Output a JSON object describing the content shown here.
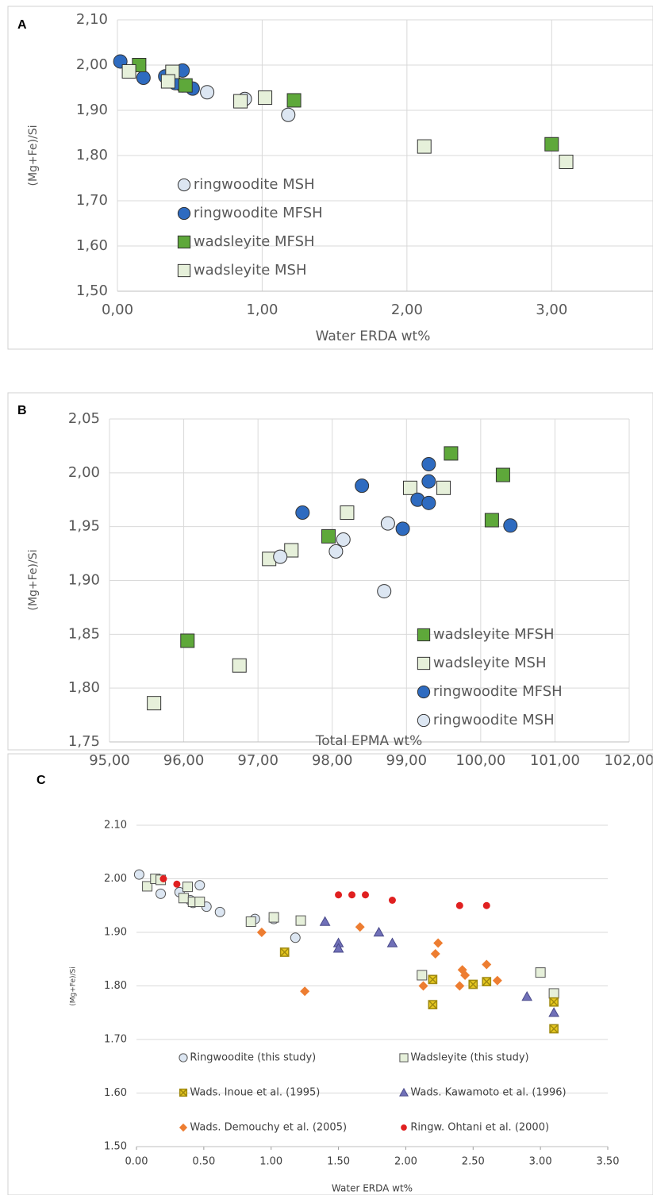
{
  "chart_data": [
    {
      "type": "scatter",
      "label": "A",
      "xlabel": "Water ERDA wt%",
      "ylabel": "(Mg+Fe)/Si",
      "xlim": [
        0,
        3.7
      ],
      "ylim": [
        1.5,
        2.1
      ],
      "grid": "both",
      "legend": "center left",
      "xticks": [
        {
          "value": 0,
          "label": "0,00"
        },
        {
          "value": 1,
          "label": "1,00"
        },
        {
          "value": 2,
          "label": "2,00"
        },
        {
          "value": 3,
          "label": "3,00"
        }
      ],
      "yticks": [
        {
          "value": 1.5,
          "label": "1,50"
        },
        {
          "value": 1.6,
          "label": "1,60"
        },
        {
          "value": 1.7,
          "label": "1,70"
        },
        {
          "value": 1.8,
          "label": "1,80"
        },
        {
          "value": 1.9,
          "label": "1,90"
        },
        {
          "value": 2.0,
          "label": "2,00"
        },
        {
          "value": 2.1,
          "label": "2,10"
        }
      ],
      "series": [
        {
          "name": "ringwoodite MSH",
          "marker": "circle",
          "color": "#dce6f2",
          "x": [
            0.62,
            0.88,
            1.18,
            0.45
          ],
          "values": [
            1.94,
            1.925,
            1.89,
            1.955
          ]
        },
        {
          "name": "ringwoodite MFSH",
          "marker": "circle",
          "color": "#2e6bc0",
          "x": [
            0.02,
            0.18,
            0.33,
            0.45,
            0.4,
            0.52
          ],
          "values": [
            2.008,
            1.972,
            1.975,
            1.988,
            1.96,
            1.948
          ]
        },
        {
          "name": "wadsleyite MFSH",
          "marker": "square",
          "color": "#5ea83a",
          "x": [
            0.15,
            0.47,
            1.22,
            3.0
          ],
          "values": [
            2.0,
            1.955,
            1.922,
            1.825
          ]
        },
        {
          "name": "wadsleyite MSH",
          "marker": "square",
          "color": "#e6f0da",
          "x": [
            0.08,
            0.38,
            0.35,
            0.85,
            1.02,
            2.12,
            3.1
          ],
          "values": [
            1.986,
            1.985,
            1.964,
            1.92,
            1.928,
            1.82,
            1.786
          ]
        }
      ]
    },
    {
      "type": "scatter",
      "label": "B",
      "xlabel": "Total EPMA wt%",
      "ylabel": "(Mg+Fe)/Si",
      "xlim": [
        95,
        102
      ],
      "ylim": [
        1.75,
        2.05
      ],
      "grid": "both",
      "legend": "lower right",
      "xticks": [
        {
          "value": 95,
          "label": "95,00"
        },
        {
          "value": 96,
          "label": "96,00"
        },
        {
          "value": 97,
          "label": "97,00"
        },
        {
          "value": 98,
          "label": "98,00"
        },
        {
          "value": 99,
          "label": "99,00"
        },
        {
          "value": 100,
          "label": "100,00"
        },
        {
          "value": 101,
          "label": "101,00"
        },
        {
          "value": 102,
          "label": "102,00"
        }
      ],
      "yticks": [
        {
          "value": 1.75,
          "label": "1,75"
        },
        {
          "value": 1.8,
          "label": "1,80"
        },
        {
          "value": 1.85,
          "label": "1,85"
        },
        {
          "value": 1.9,
          "label": "1,90"
        },
        {
          "value": 1.95,
          "label": "1,95"
        },
        {
          "value": 2.0,
          "label": "2,00"
        },
        {
          "value": 2.05,
          "label": "2,05"
        }
      ],
      "series": [
        {
          "name": "wadsleyite MFSH",
          "marker": "square",
          "color": "#5ea83a",
          "x": [
            99.6,
            100.3,
            100.15,
            97.95,
            96.05
          ],
          "values": [
            2.018,
            1.998,
            1.956,
            1.941,
            1.844
          ]
        },
        {
          "name": "wadsleyite MSH",
          "marker": "square",
          "color": "#e6f0da",
          "x": [
            99.05,
            99.5,
            98.2,
            97.45,
            97.15,
            96.75,
            95.6
          ],
          "values": [
            1.986,
            1.986,
            1.963,
            1.928,
            1.92,
            1.821,
            1.786
          ]
        },
        {
          "name": "ringwoodite MFSH",
          "marker": "circle",
          "color": "#2e6bc0",
          "x": [
            99.3,
            99.3,
            98.4,
            99.15,
            99.3,
            97.6,
            98.95,
            100.4
          ],
          "values": [
            2.008,
            1.992,
            1.988,
            1.975,
            1.972,
            1.963,
            1.948,
            1.951
          ]
        },
        {
          "name": "ringwoodite MSH",
          "marker": "circle",
          "color": "#dce6f2",
          "x": [
            98.75,
            98.15,
            98.05,
            97.3,
            98.7
          ],
          "values": [
            1.953,
            1.938,
            1.927,
            1.922,
            1.89
          ]
        }
      ]
    },
    {
      "type": "scatter",
      "label": "C",
      "xlabel": "Water ERDA wt%",
      "ylabel": "(Mg+Fe)/Si",
      "xlim": [
        0,
        3.5
      ],
      "ylim": [
        1.5,
        2.1
      ],
      "grid": "y",
      "legend": "bottom",
      "xticks": [
        {
          "value": 0,
          "label": "0.00"
        },
        {
          "value": 0.5,
          "label": "0.50"
        },
        {
          "value": 1,
          "label": "1.00"
        },
        {
          "value": 1.5,
          "label": "1.50"
        },
        {
          "value": 2,
          "label": "2.00"
        },
        {
          "value": 2.5,
          "label": "2.50"
        },
        {
          "value": 3,
          "label": "3.00"
        },
        {
          "value": 3.5,
          "label": "3.50"
        }
      ],
      "yticks": [
        {
          "value": 1.5,
          "label": "1.50"
        },
        {
          "value": 1.6,
          "label": "1.60"
        },
        {
          "value": 1.7,
          "label": "1.70"
        },
        {
          "value": 1.8,
          "label": "1.80"
        },
        {
          "value": 1.9,
          "label": "1.90"
        },
        {
          "value": 2.0,
          "label": "2.00"
        },
        {
          "value": 2.1,
          "label": "2.10"
        }
      ],
      "series": [
        {
          "name": "Ringwoodite (this study)",
          "marker": "circle",
          "color": "#dce6f2",
          "x": [
            0.02,
            0.18,
            0.32,
            0.4,
            0.42,
            0.47,
            0.52,
            0.62,
            0.88,
            1.02,
            1.18
          ],
          "values": [
            2.008,
            1.972,
            1.975,
            1.96,
            1.955,
            1.988,
            1.948,
            1.938,
            1.925,
            1.925,
            1.89
          ]
        },
        {
          "name": "Wadsleyite (this study)",
          "marker": "square",
          "color": "#e6f0da",
          "x": [
            0.08,
            0.14,
            0.18,
            0.35,
            0.38,
            0.42,
            0.47,
            0.85,
            1.02,
            1.22,
            2.12,
            3.0,
            3.1
          ],
          "values": [
            1.986,
            2.0,
            1.998,
            1.964,
            1.985,
            1.957,
            1.957,
            1.92,
            1.928,
            1.922,
            1.82,
            1.825,
            1.786
          ]
        },
        {
          "name": "Wads. Inoue et al. (1995)",
          "marker": "xsquare",
          "color": "#e8c920",
          "x": [
            1.1,
            2.2,
            2.2,
            2.5,
            2.6,
            3.1,
            3.1
          ],
          "values": [
            1.863,
            1.812,
            1.765,
            1.803,
            1.808,
            1.77,
            1.72
          ]
        },
        {
          "name": "Wads. Kawamoto et al. (1996)",
          "marker": "triangle",
          "color": "#7070b8",
          "x": [
            1.4,
            1.5,
            1.5,
            1.8,
            1.9,
            2.9,
            3.1
          ],
          "values": [
            1.92,
            1.88,
            1.87,
            1.9,
            1.88,
            1.78,
            1.75
          ]
        },
        {
          "name": "Wads. Demouchy et al. (2005)",
          "marker": "diamond",
          "color": "#ed7d31",
          "x": [
            0.93,
            1.25,
            1.66,
            2.13,
            2.22,
            2.24,
            2.4,
            2.42,
            2.44,
            2.6,
            2.68
          ],
          "values": [
            1.9,
            1.79,
            1.91,
            1.8,
            1.86,
            1.88,
            1.8,
            1.83,
            1.82,
            1.84,
            1.81
          ]
        },
        {
          "name": "Ringw. Ohtani et al. (2000)",
          "marker": "dot",
          "color": "#e02020",
          "x": [
            0.2,
            0.3,
            1.5,
            1.6,
            1.7,
            1.9,
            2.4,
            2.6
          ],
          "values": [
            2.0,
            1.99,
            1.97,
            1.97,
            1.97,
            1.96,
            1.95,
            1.95
          ]
        }
      ]
    }
  ]
}
